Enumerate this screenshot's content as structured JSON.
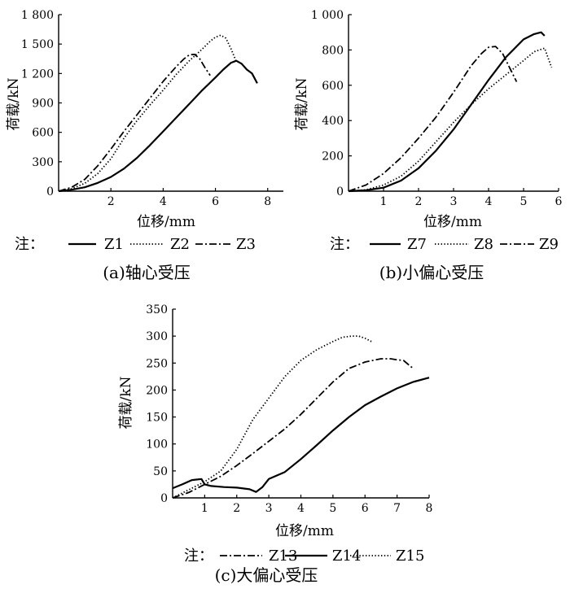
{
  "chart_data": [
    {
      "type": "line",
      "caption": "(a)轴心受压",
      "xlabel": "位移/mm",
      "ylabel": "荷载/kN",
      "xlim": [
        0,
        8.6
      ],
      "ylim": [
        0,
        1800
      ],
      "xticks": [
        2,
        4,
        6,
        8
      ],
      "xtick_labels": [
        "2",
        "4",
        "6",
        "8"
      ],
      "yticks": [
        0,
        300,
        600,
        900,
        1200,
        1500,
        1800
      ],
      "ytick_labels": [
        "0",
        "300",
        "600",
        "900",
        "1 200",
        "1 500",
        "1 800"
      ],
      "grid": false,
      "legend_prefix": "注：",
      "series": [
        {
          "name": "Z1",
          "style": "solid",
          "x": [
            0,
            0.5,
            1.0,
            1.5,
            2.0,
            2.5,
            3.0,
            3.5,
            4.0,
            4.5,
            5.0,
            5.5,
            6.0,
            6.3,
            6.6,
            6.8,
            7.0,
            7.2,
            7.4,
            7.6
          ],
          "y": [
            0,
            15,
            40,
            85,
            145,
            230,
            340,
            470,
            610,
            750,
            890,
            1030,
            1160,
            1240,
            1310,
            1330,
            1300,
            1240,
            1200,
            1100
          ]
        },
        {
          "name": "Z2",
          "style": "dotted",
          "x": [
            0,
            0.5,
            1.0,
            1.5,
            2.0,
            2.5,
            3.0,
            3.5,
            4.0,
            4.5,
            5.0,
            5.5,
            5.8,
            6.0,
            6.2,
            6.4,
            6.6,
            6.8
          ],
          "y": [
            0,
            25,
            80,
            180,
            330,
            540,
            720,
            880,
            1030,
            1190,
            1330,
            1450,
            1530,
            1570,
            1590,
            1560,
            1450,
            1320
          ]
        },
        {
          "name": "Z3",
          "style": "dashdot",
          "x": [
            0,
            0.5,
            1.0,
            1.5,
            2.0,
            2.5,
            3.0,
            3.5,
            4.0,
            4.5,
            4.8,
            5.0,
            5.2,
            5.4,
            5.6,
            5.8
          ],
          "y": [
            0,
            40,
            120,
            260,
            430,
            610,
            780,
            950,
            1120,
            1270,
            1350,
            1390,
            1395,
            1350,
            1260,
            1180
          ]
        }
      ]
    },
    {
      "type": "line",
      "caption": "(b)小偏心受压",
      "xlabel": "位移/mm",
      "ylabel": "荷载/kN",
      "xlim": [
        0,
        6
      ],
      "ylim": [
        0,
        1000
      ],
      "xticks": [
        1,
        2,
        3,
        4,
        5,
        6
      ],
      "xtick_labels": [
        "1",
        "2",
        "3",
        "4",
        "5",
        "6"
      ],
      "yticks": [
        0,
        200,
        400,
        600,
        800,
        1000
      ],
      "ytick_labels": [
        "0",
        "200",
        "400",
        "600",
        "800",
        "1 000"
      ],
      "grid": false,
      "legend_prefix": "注：",
      "series": [
        {
          "name": "Z7",
          "style": "solid",
          "x": [
            0,
            0.5,
            1.0,
            1.5,
            2.0,
            2.5,
            3.0,
            3.5,
            4.0,
            4.5,
            5.0,
            5.3,
            5.5,
            5.6
          ],
          "y": [
            0,
            5,
            20,
            60,
            130,
            230,
            350,
            490,
            630,
            760,
            860,
            890,
            900,
            880
          ]
        },
        {
          "name": "Z8",
          "style": "dotted",
          "x": [
            0,
            0.5,
            1.0,
            1.5,
            2.0,
            2.5,
            3.0,
            3.5,
            4.0,
            4.5,
            5.0,
            5.3,
            5.6,
            5.8
          ],
          "y": [
            0,
            8,
            35,
            85,
            170,
            280,
            390,
            490,
            580,
            660,
            740,
            790,
            810,
            700
          ]
        },
        {
          "name": "Z9",
          "style": "dashdot",
          "x": [
            0,
            0.5,
            1.0,
            1.5,
            2.0,
            2.5,
            3.0,
            3.5,
            3.8,
            4.0,
            4.2,
            4.4,
            4.6,
            4.8
          ],
          "y": [
            0,
            35,
            100,
            190,
            300,
            420,
            560,
            710,
            780,
            815,
            820,
            780,
            700,
            620
          ]
        }
      ]
    },
    {
      "type": "line",
      "caption": "(c)大偏心受压",
      "xlabel": "位移/mm",
      "ylabel": "荷载/kN",
      "xlim": [
        0,
        8
      ],
      "ylim": [
        0,
        350
      ],
      "xticks": [
        1,
        2,
        3,
        4,
        5,
        6,
        7,
        8
      ],
      "xtick_labels": [
        "1",
        "2",
        "3",
        "4",
        "5",
        "6",
        "7",
        "8"
      ],
      "yticks": [
        0,
        50,
        100,
        150,
        200,
        250,
        300,
        350
      ],
      "ytick_labels": [
        "0",
        "50",
        "100",
        "150",
        "200",
        "250",
        "300",
        "350"
      ],
      "grid": false,
      "legend_prefix": "注：",
      "series": [
        {
          "name": "Z13",
          "style": "dashdot",
          "x": [
            0,
            0.5,
            1.0,
            1.5,
            2.0,
            2.5,
            3.0,
            3.5,
            4.0,
            4.5,
            5.0,
            5.5,
            6.0,
            6.5,
            6.8,
            7.0,
            7.2,
            7.5
          ],
          "y": [
            0,
            10,
            25,
            40,
            60,
            82,
            105,
            128,
            155,
            185,
            215,
            240,
            252,
            258,
            258,
            256,
            255,
            240
          ]
        },
        {
          "name": "Z14",
          "style": "solid",
          "x": [
            0,
            0.3,
            0.6,
            0.9,
            1.0,
            1.2,
            1.6,
            2.0,
            2.4,
            2.6,
            2.8,
            3.0,
            3.5,
            4.0,
            4.5,
            5.0,
            5.5,
            6.0,
            6.5,
            7.0,
            7.5,
            8.0
          ],
          "y": [
            18,
            25,
            33,
            35,
            25,
            22,
            20,
            19,
            16,
            11,
            20,
            35,
            48,
            72,
            98,
            125,
            150,
            172,
            188,
            203,
            215,
            223
          ]
        },
        {
          "name": "Z15",
          "style": "dotted",
          "x": [
            0,
            0.5,
            1.0,
            1.5,
            2.0,
            2.5,
            3.0,
            3.5,
            4.0,
            4.5,
            5.0,
            5.3,
            5.6,
            5.8,
            6.0,
            6.2
          ],
          "y": [
            0,
            15,
            30,
            50,
            90,
            145,
            185,
            225,
            255,
            275,
            290,
            298,
            300,
            300,
            296,
            290
          ]
        }
      ]
    }
  ]
}
